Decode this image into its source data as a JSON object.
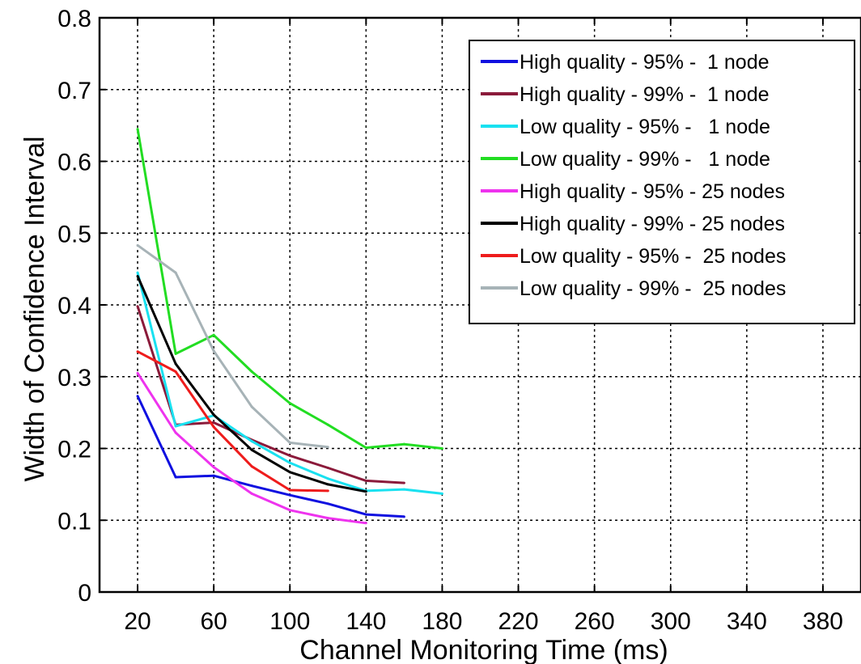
{
  "chart_data": {
    "type": "line",
    "xlabel": "Channel Monitoring Time (ms)",
    "ylabel": "Width of Confidence Interval",
    "xlim": [
      0,
      400
    ],
    "ylim": [
      0,
      0.8
    ],
    "x_ticks": [
      20,
      60,
      100,
      140,
      180,
      220,
      260,
      300,
      340,
      380
    ],
    "x_tick_labels": [
      "20",
      "60",
      "100",
      "140",
      "180",
      "220",
      "260",
      "300",
      "340",
      "380"
    ],
    "y_ticks": [
      0,
      0.1,
      0.2,
      0.3,
      0.4,
      0.5,
      0.6,
      0.7,
      0.8
    ],
    "y_tick_labels": [
      "0",
      "0.1",
      "0.2",
      "0.3",
      "0.4",
      "0.5",
      "0.6",
      "0.7",
      "0.8"
    ],
    "grid": true,
    "legend_position": "top-right",
    "series": [
      {
        "name": "High quality - 95% -  1 node",
        "color": "#1010e0",
        "x": [
          20,
          40,
          60,
          80,
          100,
          120,
          140,
          160
        ],
        "y": [
          0.273,
          0.16,
          0.162,
          0.148,
          0.135,
          0.123,
          0.108,
          0.105
        ]
      },
      {
        "name": "High quality - 99% -  1 node",
        "color": "#8b1a3a",
        "x": [
          20,
          40,
          60,
          80,
          100,
          120,
          140,
          160
        ],
        "y": [
          0.398,
          0.233,
          0.236,
          0.212,
          0.19,
          0.173,
          0.155,
          0.152
        ]
      },
      {
        "name": "Low quality - 95% -   1 node",
        "color": "#19e1f0",
        "x": [
          20,
          40,
          60,
          80,
          100,
          120,
          140,
          160,
          180
        ],
        "y": [
          0.445,
          0.231,
          0.246,
          0.21,
          0.18,
          0.158,
          0.141,
          0.143,
          0.137
        ]
      },
      {
        "name": "Low quality - 99% -   1 node",
        "color": "#22dd22",
        "x": [
          20,
          40,
          60,
          80,
          100,
          120,
          140,
          160,
          180
        ],
        "y": [
          0.645,
          0.332,
          0.358,
          0.307,
          0.263,
          0.233,
          0.201,
          0.206,
          0.2
        ]
      },
      {
        "name": "High quality - 95% - 25 nodes",
        "color": "#ee33ee",
        "x": [
          20,
          40,
          60,
          80,
          100,
          120,
          140
        ],
        "y": [
          0.305,
          0.222,
          0.174,
          0.137,
          0.114,
          0.103,
          0.096
        ]
      },
      {
        "name": "High quality - 99% - 25 nodes",
        "color": "#000000",
        "x": [
          20,
          40,
          60,
          80,
          100,
          120,
          140
        ],
        "y": [
          0.44,
          0.318,
          0.247,
          0.198,
          0.167,
          0.15,
          0.14
        ]
      },
      {
        "name": "Low quality - 95% -  25 nodes",
        "color": "#ee1c1c",
        "x": [
          20,
          40,
          60,
          80,
          100,
          120
        ],
        "y": [
          0.335,
          0.307,
          0.23,
          0.175,
          0.142,
          0.141
        ]
      },
      {
        "name": "Low quality - 99% -  25 nodes",
        "color": "#a7b3b7",
        "x": [
          20,
          40,
          60,
          80,
          100,
          120
        ],
        "y": [
          0.483,
          0.445,
          0.336,
          0.258,
          0.208,
          0.202
        ]
      }
    ]
  }
}
